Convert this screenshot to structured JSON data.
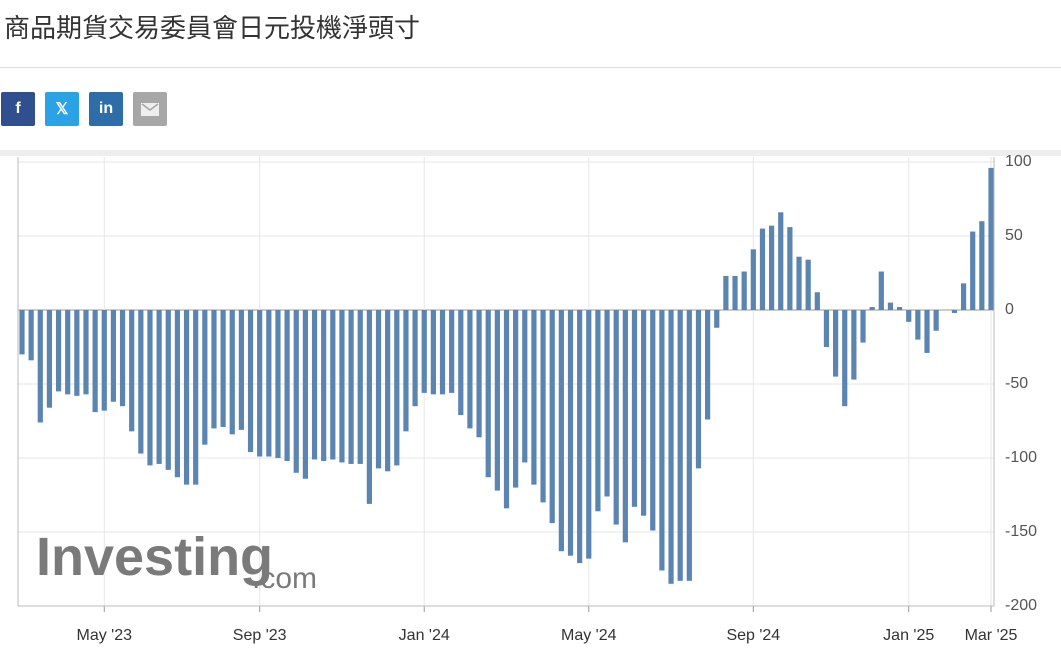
{
  "chart_data": {
    "type": "bar",
    "title": "商品期貨交易委員會日元投機淨頭寸",
    "categories": [
      null,
      null,
      null,
      null,
      null,
      null,
      null,
      null,
      null,
      "May '23",
      null,
      null,
      null,
      null,
      null,
      null,
      null,
      null,
      null,
      null,
      null,
      null,
      null,
      null,
      null,
      null,
      "Sep '23",
      null,
      null,
      null,
      null,
      null,
      null,
      null,
      null,
      null,
      null,
      null,
      null,
      null,
      null,
      null,
      null,
      null,
      "Jan '24",
      null,
      null,
      null,
      null,
      null,
      null,
      null,
      null,
      null,
      null,
      null,
      null,
      null,
      null,
      null,
      null,
      null,
      "May '24",
      null,
      null,
      null,
      null,
      null,
      null,
      null,
      null,
      null,
      null,
      null,
      null,
      null,
      null,
      null,
      null,
      null,
      "Sep '24",
      null,
      null,
      null,
      null,
      null,
      null,
      null,
      null,
      null,
      null,
      null,
      null,
      null,
      null,
      null,
      null,
      "Jan '25",
      null,
      null,
      null,
      null,
      null,
      null,
      null,
      null,
      "Mar '25"
    ],
    "values": [
      -30,
      -34,
      -76,
      -66,
      -55,
      -57,
      -58,
      -57,
      -69,
      -68,
      -62,
      -65,
      -82,
      -97,
      -105,
      -104,
      -108,
      -113,
      -118,
      -118,
      -91,
      -80,
      -79,
      -84,
      -81,
      -96,
      -99,
      -99,
      -100,
      -102,
      -110,
      -114,
      -101,
      -102,
      -101,
      -103,
      -104,
      -104,
      -131,
      -107,
      -109,
      -105,
      -82,
      -65,
      -56,
      -57,
      -57,
      -56,
      -71,
      -80,
      -86,
      -113,
      -122,
      -134,
      -120,
      -103,
      -118,
      -130,
      -144,
      -163,
      -166,
      -171,
      -168,
      -136,
      -126,
      -145,
      -157,
      -133,
      -139,
      -149,
      -176,
      -185,
      -183,
      -183,
      -107,
      -74,
      -12,
      23,
      23,
      26,
      41,
      55,
      57,
      66,
      56,
      36,
      34,
      12,
      -25,
      -45,
      -65,
      -47,
      -22,
      2,
      26,
      5,
      2,
      -8,
      -20,
      -29,
      -14,
      0,
      -2,
      18,
      53,
      60,
      96
    ],
    "color": "#5b84b1",
    "ylim": [
      -200,
      100
    ],
    "yticks": [
      -200,
      -150,
      -100,
      -50,
      0,
      50,
      100
    ],
    "grid": true,
    "watermark": {
      "brand": "Investing",
      "suffix": ".com"
    }
  }
}
